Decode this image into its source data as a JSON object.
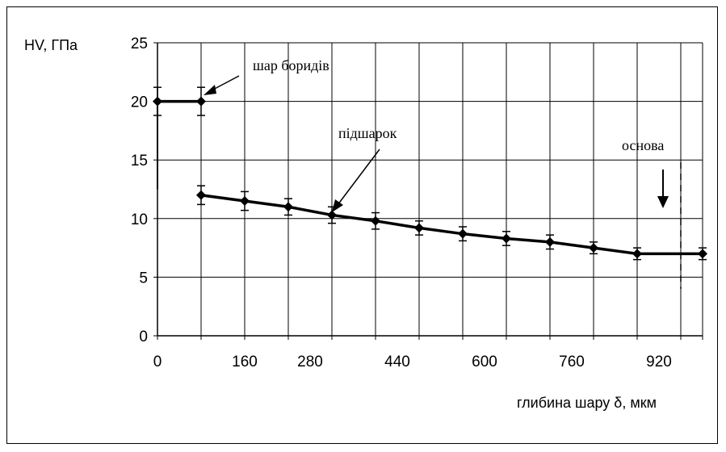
{
  "chart_data": {
    "type": "line",
    "ylabel": "HV, ГПа",
    "xlabel": "глибина шару δ, мкм",
    "ylim": [
      0,
      25
    ],
    "xlim": [
      0,
      1000
    ],
    "x_tick_labels": [
      "0",
      "160",
      "280",
      "440",
      "600",
      "760",
      "920"
    ],
    "x_tick_values": [
      0,
      160,
      280,
      440,
      600,
      760,
      920
    ],
    "x_grid_values": [
      0,
      80,
      160,
      240,
      320,
      400,
      480,
      560,
      640,
      720,
      800,
      880,
      960,
      1000
    ],
    "y_ticks": [
      0,
      5,
      10,
      15,
      20,
      25
    ],
    "grid": true,
    "series": [
      {
        "segment": "boride_layer",
        "x": [
          0,
          80
        ],
        "y": [
          20.0,
          20.0
        ],
        "err": [
          1.2,
          1.2
        ]
      },
      {
        "segment": "sublayer",
        "x": [
          80,
          160,
          240,
          320,
          400,
          480,
          560,
          640,
          720,
          800,
          880,
          1000
        ],
        "y": [
          12.0,
          11.5,
          11.0,
          10.3,
          9.8,
          9.2,
          8.7,
          8.3,
          8.0,
          7.5,
          7.0,
          7.0
        ],
        "err": [
          0.8,
          0.8,
          0.7,
          0.7,
          0.7,
          0.6,
          0.6,
          0.6,
          0.6,
          0.5,
          0.5,
          0.5
        ]
      }
    ],
    "annotations": [
      {
        "id": "boride",
        "text": "шар боридів"
      },
      {
        "id": "sublayer",
        "text": "підшарок"
      },
      {
        "id": "base",
        "text": "основа"
      }
    ],
    "base_boundary_x": 960
  }
}
